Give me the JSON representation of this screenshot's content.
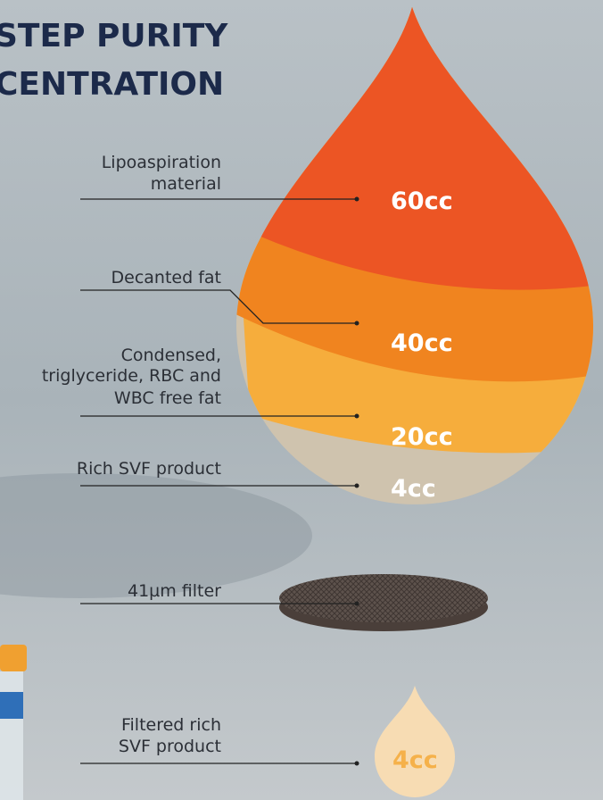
{
  "header": {
    "title": [
      "STEP PURITY",
      "CENTRATION"
    ]
  },
  "layers": [
    {
      "label": [
        "Lipoaspiration",
        "material"
      ],
      "volume": "60cc"
    },
    {
      "label": [
        "Decanted fat"
      ],
      "volume": "40cc"
    },
    {
      "label": [
        "Condensed,",
        "triglyceride, RBC and",
        "WBC free fat"
      ],
      "volume": "20cc"
    },
    {
      "label": [
        "Rich SVF product"
      ],
      "volume": "4cc"
    }
  ],
  "filter": {
    "label": [
      "41µm filter"
    ]
  },
  "product": {
    "label": [
      "Filtered rich",
      "SVF product"
    ],
    "volume": "4cc"
  }
}
